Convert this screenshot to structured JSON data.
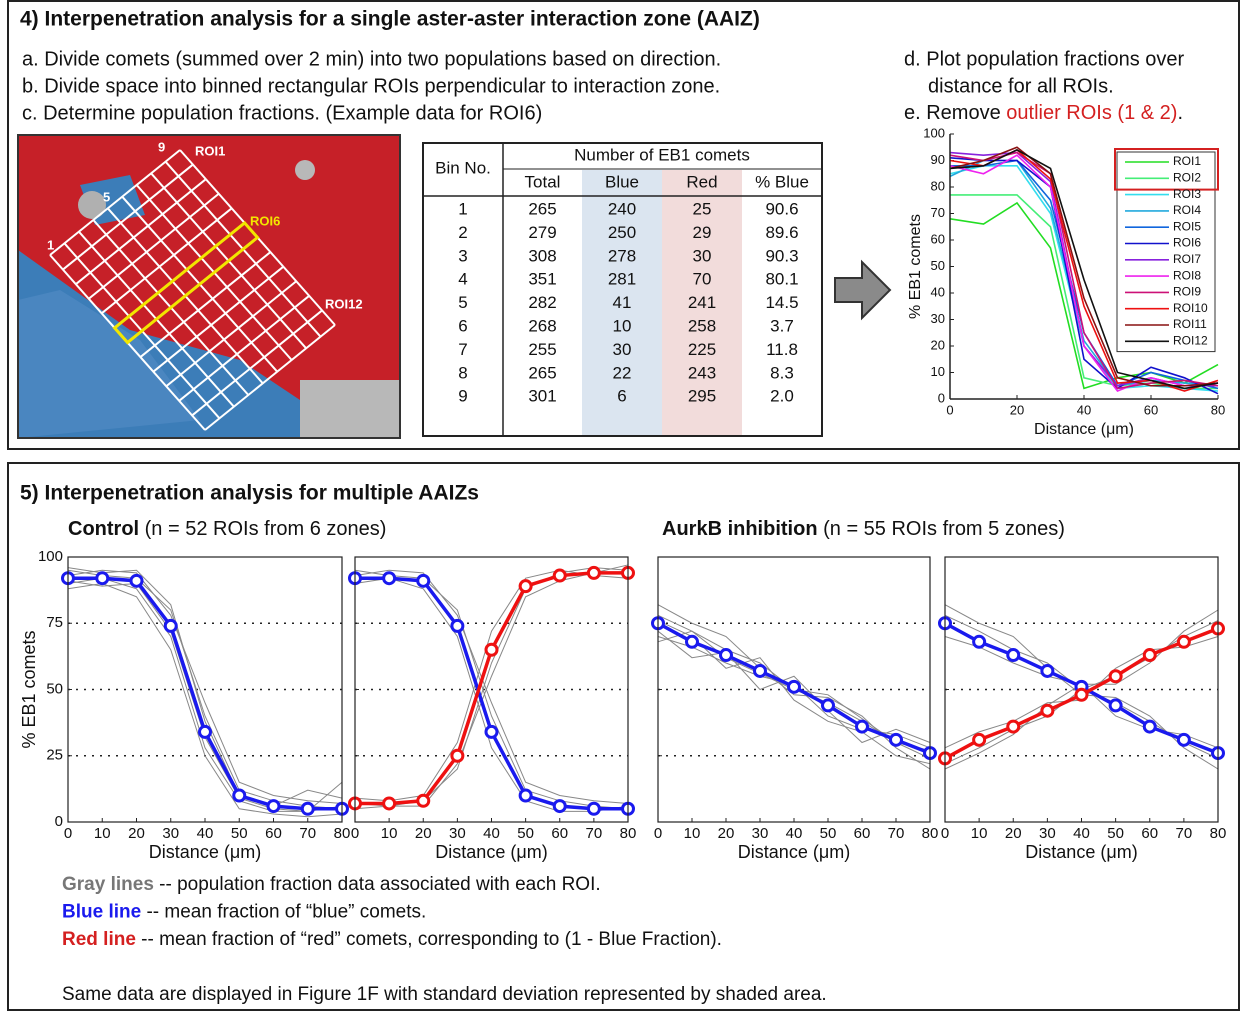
{
  "panel4": {
    "title": "4) Interpenetration analysis for a single aster-aster interaction zone (AAIZ)",
    "steps": [
      "a. Divide comets (summed over 2 min) into two populations based on direction.",
      "b. Divide space into binned rectangular ROIs perpendicular to interaction zone.",
      "c. Determine population fractions. (Example data for ROI6)"
    ],
    "step_d": [
      "d. Plot population fractions over",
      "distance for all ROIs."
    ],
    "step_e": [
      "e. Remove ",
      "outlier ROIs (1 & 2)",
      "."
    ],
    "image_labels": {
      "roi_top": "ROI1",
      "roi_example": "ROI6",
      "roi_last": "ROI12",
      "bin_first": "1",
      "bin_mid": "5",
      "bin_last": "9"
    },
    "table": {
      "header_bin": "Bin No.",
      "header_group": "Number of EB1 comets",
      "columns": [
        "Total",
        "Blue",
        "Red",
        "% Blue"
      ],
      "rows": [
        [
          "1",
          "265",
          "240",
          "25",
          "90.6"
        ],
        [
          "2",
          "279",
          "250",
          "29",
          "89.6"
        ],
        [
          "3",
          "308",
          "278",
          "30",
          "90.3"
        ],
        [
          "4",
          "351",
          "281",
          "70",
          "80.1"
        ],
        [
          "5",
          "282",
          "41",
          "241",
          "14.5"
        ],
        [
          "6",
          "268",
          "10",
          "258",
          "3.7"
        ],
        [
          "7",
          "255",
          "30",
          "225",
          "11.8"
        ],
        [
          "8",
          "265",
          "22",
          "243",
          "8.3"
        ],
        [
          "9",
          "301",
          "6",
          "295",
          "2.0"
        ]
      ]
    }
  },
  "panel5": {
    "title": "5) Interpenetration analysis for multiple AAIZs",
    "groups": [
      [
        "Control",
        " (n = 52 ROIs from 6 zones)"
      ],
      [
        "AurkB inhibition",
        " (n = 55 ROIs from 5 zones)"
      ]
    ],
    "notes": [
      [
        "Gray lines",
        " -- population fraction data associated with each ROI."
      ],
      [
        "Blue line",
        " -- mean fraction of “blue” comets."
      ],
      [
        "Red line",
        " -- mean fraction of “red” comets, corresponding to (1 - Blue Fraction)."
      ]
    ],
    "footer": "Same data are displayed in Figure 1F with standard deviation represented by shaded area."
  },
  "chart_data": [
    {
      "type": "line",
      "x_label": "Distance (μm)",
      "y_label": "% EB1 comets",
      "x": [
        0,
        10,
        20,
        30,
        40,
        50,
        60,
        70,
        80
      ],
      "xlim": [
        0,
        80
      ],
      "xticks": [
        0,
        20,
        40,
        60,
        80
      ],
      "ylim": [
        0,
        100
      ],
      "yticks": [
        0,
        10,
        20,
        30,
        40,
        50,
        60,
        70,
        80,
        90,
        100
      ],
      "grid": false,
      "box": false,
      "legend": "upper right",
      "series": [
        {
          "name": "ROI1",
          "color": "#22dd22",
          "values": [
            68,
            66,
            74,
            57,
            4,
            8,
            10,
            6,
            13
          ]
        },
        {
          "name": "ROI2",
          "color": "#44ee77",
          "values": [
            77,
            77,
            77,
            65,
            8,
            5,
            6,
            4,
            4
          ]
        },
        {
          "name": "ROI3",
          "color": "#33ddee",
          "values": [
            85,
            88,
            88,
            70,
            20,
            4,
            5,
            4,
            3
          ]
        },
        {
          "name": "ROI4",
          "color": "#22aadd",
          "values": [
            84,
            90,
            90,
            72,
            22,
            5,
            7,
            6,
            5
          ]
        },
        {
          "name": "ROI5",
          "color": "#1166dd",
          "values": [
            88,
            88,
            90,
            75,
            25,
            5,
            10,
            7,
            4
          ]
        },
        {
          "name": "ROI6",
          "color": "#1111cc",
          "values": [
            91,
            90,
            90,
            80,
            15,
            4,
            12,
            8,
            2
          ]
        },
        {
          "name": "ROI7",
          "color": "#8822dd",
          "values": [
            93,
            92,
            93,
            82,
            20,
            5,
            8,
            5,
            5
          ]
        },
        {
          "name": "ROI8",
          "color": "#ee22ee",
          "values": [
            88,
            85,
            92,
            80,
            20,
            3,
            8,
            5,
            6
          ]
        },
        {
          "name": "ROI9",
          "color": "#cc1177",
          "values": [
            92,
            90,
            93,
            85,
            25,
            4,
            6,
            7,
            5
          ]
        },
        {
          "name": "ROI10",
          "color": "#ee1111",
          "values": [
            90,
            88,
            94,
            83,
            35,
            6,
            7,
            3,
            7
          ]
        },
        {
          "name": "ROI11",
          "color": "#881111",
          "values": [
            87,
            90,
            95,
            85,
            38,
            8,
            5,
            5,
            6
          ]
        },
        {
          "name": "ROI12",
          "color": "#111111",
          "values": [
            87,
            88,
            94,
            87,
            45,
            10,
            7,
            4,
            6
          ]
        }
      ]
    },
    {
      "type": "line",
      "x_label": "Distance (μm)",
      "y_label": "% EB1 comets",
      "ytick_labels": true,
      "x": [
        0,
        10,
        20,
        30,
        40,
        50,
        60,
        70,
        80
      ],
      "xlim": [
        0,
        80
      ],
      "xticks": [
        0,
        10,
        20,
        30,
        40,
        50,
        60,
        70,
        80
      ],
      "ylim": [
        0,
        100
      ],
      "yticks": [
        0,
        25,
        50,
        75,
        100
      ],
      "grid": true,
      "box": true,
      "series": [
        {
          "color": "#888888",
          "values": [
            95,
            93,
            92,
            80,
            40,
            12,
            8,
            6,
            5
          ]
        },
        {
          "color": "#888888",
          "values": [
            90,
            92,
            88,
            70,
            28,
            8,
            4,
            4,
            6
          ]
        },
        {
          "color": "#888888",
          "values": [
            93,
            95,
            94,
            78,
            45,
            15,
            10,
            8,
            7
          ]
        },
        {
          "color": "#888888",
          "values": [
            88,
            90,
            85,
            65,
            25,
            5,
            3,
            2,
            3
          ]
        },
        {
          "color": "#888888",
          "values": [
            96,
            94,
            95,
            82,
            38,
            10,
            6,
            12,
            9
          ]
        },
        {
          "color": "#888888",
          "values": [
            91,
            89,
            90,
            72,
            32,
            9,
            5,
            4,
            15
          ]
        },
        {
          "color": "#1a1aee",
          "marker": "circle",
          "values": [
            92,
            92,
            91,
            74,
            34,
            10,
            6,
            5,
            5
          ]
        }
      ]
    },
    {
      "type": "line",
      "x_label": "Distance (μm)",
      "ytick_labels": false,
      "x": [
        0,
        10,
        20,
        30,
        40,
        50,
        60,
        70,
        80
      ],
      "xlim": [
        0,
        80
      ],
      "xticks": [
        0,
        10,
        20,
        30,
        40,
        50,
        60,
        70,
        80
      ],
      "ylim": [
        0,
        100
      ],
      "yticks": [
        0,
        25,
        50,
        75,
        100
      ],
      "grid": true,
      "box": true,
      "series": [
        {
          "color": "#888888",
          "values": [
            95,
            93,
            92,
            80,
            40,
            12,
            8,
            6,
            5
          ]
        },
        {
          "color": "#888888",
          "values": [
            90,
            92,
            88,
            70,
            28,
            8,
            4,
            4,
            6
          ]
        },
        {
          "color": "#888888",
          "values": [
            93,
            95,
            94,
            78,
            45,
            15,
            10,
            8,
            7
          ]
        },
        {
          "color": "#888888",
          "values": [
            5,
            6,
            8,
            20,
            60,
            88,
            94,
            96,
            95
          ]
        },
        {
          "color": "#888888",
          "values": [
            9,
            8,
            10,
            30,
            72,
            92,
            95,
            93,
            92
          ]
        },
        {
          "color": "#888888",
          "values": [
            7,
            6,
            6,
            22,
            55,
            85,
            91,
            94,
            97
          ]
        },
        {
          "color": "#1a1aee",
          "marker": "circle",
          "values": [
            92,
            92,
            91,
            74,
            34,
            10,
            6,
            5,
            5
          ]
        },
        {
          "color": "#ee1111",
          "marker": "circle",
          "values": [
            7,
            7,
            8,
            25,
            65,
            89,
            93,
            94,
            94
          ]
        }
      ]
    },
    {
      "type": "line",
      "x_label": "Distance (μm)",
      "ytick_labels": false,
      "x": [
        0,
        10,
        20,
        30,
        40,
        50,
        60,
        70,
        80
      ],
      "xlim": [
        0,
        80
      ],
      "xticks": [
        0,
        10,
        20,
        30,
        40,
        50,
        60,
        70,
        80
      ],
      "ylim": [
        0,
        100
      ],
      "yticks": [
        0,
        25,
        50,
        75,
        100
      ],
      "grid": true,
      "box": true,
      "series": [
        {
          "color": "#888888",
          "values": [
            78,
            72,
            65,
            60,
            50,
            45,
            38,
            30,
            24
          ]
        },
        {
          "color": "#888888",
          "values": [
            70,
            66,
            60,
            55,
            52,
            40,
            35,
            33,
            28
          ]
        },
        {
          "color": "#888888",
          "values": [
            82,
            75,
            70,
            58,
            48,
            47,
            40,
            28,
            20
          ]
        },
        {
          "color": "#888888",
          "values": [
            72,
            62,
            64,
            50,
            55,
            42,
            30,
            35,
            30
          ]
        },
        {
          "color": "#888888",
          "values": [
            76,
            70,
            58,
            62,
            46,
            38,
            34,
            25,
            22
          ]
        },
        {
          "color": "#888888",
          "values": [
            68,
            72,
            62,
            56,
            50,
            48,
            39,
            30,
            27
          ]
        },
        {
          "color": "#1a1aee",
          "marker": "circle",
          "values": [
            75,
            68,
            63,
            57,
            51,
            44,
            36,
            31,
            26
          ]
        }
      ]
    },
    {
      "type": "line",
      "x_label": "Distance (μm)",
      "ytick_labels": false,
      "x": [
        0,
        10,
        20,
        30,
        40,
        50,
        60,
        70,
        80
      ],
      "xlim": [
        0,
        80
      ],
      "xticks": [
        0,
        10,
        20,
        30,
        40,
        50,
        60,
        70,
        80
      ],
      "ylim": [
        0,
        100
      ],
      "yticks": [
        0,
        25,
        50,
        75,
        100
      ],
      "grid": true,
      "box": true,
      "series": [
        {
          "color": "#888888",
          "values": [
            78,
            72,
            65,
            60,
            50,
            45,
            38,
            30,
            24
          ]
        },
        {
          "color": "#888888",
          "values": [
            70,
            66,
            60,
            55,
            52,
            40,
            35,
            33,
            28
          ]
        },
        {
          "color": "#888888",
          "values": [
            82,
            75,
            70,
            58,
            48,
            47,
            40,
            28,
            20
          ]
        },
        {
          "color": "#888888",
          "values": [
            22,
            28,
            35,
            40,
            50,
            55,
            62,
            70,
            76
          ]
        },
        {
          "color": "#888888",
          "values": [
            28,
            34,
            38,
            45,
            46,
            58,
            65,
            66,
            70
          ]
        },
        {
          "color": "#888888",
          "values": [
            20,
            26,
            33,
            44,
            52,
            52,
            60,
            72,
            80
          ]
        },
        {
          "color": "#1a1aee",
          "marker": "circle",
          "values": [
            75,
            68,
            63,
            57,
            51,
            44,
            36,
            31,
            26
          ]
        },
        {
          "color": "#ee1111",
          "marker": "circle",
          "values": [
            24,
            31,
            36,
            42,
            48,
            55,
            63,
            68,
            73
          ]
        }
      ]
    }
  ]
}
